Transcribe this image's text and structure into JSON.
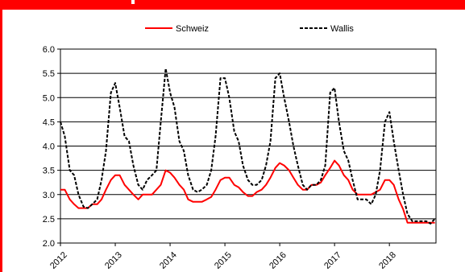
{
  "chart_data": {
    "type": "line",
    "title": "",
    "xlabel": "",
    "ylabel": "",
    "ylim": [
      2.0,
      6.0
    ],
    "yticks": [
      "2.0",
      "2.5",
      "3.0",
      "3.5",
      "4.0",
      "4.5",
      "5.0",
      "5.5",
      "6.0"
    ],
    "xticks": [
      "2012",
      "2013",
      "2014",
      "2015",
      "2016",
      "2017",
      "2018"
    ],
    "x_start": 2012.0,
    "x_end": 2018.85,
    "grid": "horizontal",
    "legend_position": "top",
    "series": [
      {
        "name": "Schweiz",
        "color": "#ff0000",
        "style": "solid",
        "x": [
          2012.0,
          2012.08,
          2012.17,
          2012.25,
          2012.33,
          2012.42,
          2012.5,
          2012.58,
          2012.67,
          2012.75,
          2012.83,
          2012.92,
          2013.0,
          2013.08,
          2013.17,
          2013.25,
          2013.33,
          2013.42,
          2013.5,
          2013.58,
          2013.67,
          2013.75,
          2013.83,
          2013.92,
          2014.0,
          2014.08,
          2014.17,
          2014.25,
          2014.33,
          2014.42,
          2014.5,
          2014.58,
          2014.67,
          2014.75,
          2014.83,
          2014.92,
          2015.0,
          2015.08,
          2015.17,
          2015.25,
          2015.33,
          2015.42,
          2015.5,
          2015.58,
          2015.67,
          2015.75,
          2015.83,
          2015.92,
          2016.0,
          2016.08,
          2016.17,
          2016.25,
          2016.33,
          2016.42,
          2016.5,
          2016.58,
          2016.67,
          2016.75,
          2016.83,
          2016.92,
          2017.0,
          2017.08,
          2017.17,
          2017.25,
          2017.33,
          2017.42,
          2017.5,
          2017.58,
          2017.67,
          2017.75,
          2017.83,
          2017.92,
          2018.0,
          2018.08,
          2018.17,
          2018.25,
          2018.33,
          2018.42,
          2018.5,
          2018.58,
          2018.67,
          2018.75,
          2018.83
        ],
        "values": [
          3.1,
          3.1,
          2.9,
          2.8,
          2.72,
          2.72,
          2.72,
          2.8,
          2.8,
          2.9,
          3.1,
          3.3,
          3.4,
          3.4,
          3.2,
          3.1,
          3.0,
          2.9,
          3.0,
          3.0,
          3.0,
          3.1,
          3.2,
          3.5,
          3.45,
          3.35,
          3.2,
          3.1,
          2.9,
          2.85,
          2.85,
          2.85,
          2.9,
          2.95,
          3.1,
          3.3,
          3.35,
          3.35,
          3.2,
          3.15,
          3.05,
          2.97,
          2.97,
          3.05,
          3.1,
          3.2,
          3.35,
          3.55,
          3.65,
          3.6,
          3.5,
          3.35,
          3.2,
          3.1,
          3.1,
          3.2,
          3.2,
          3.25,
          3.4,
          3.55,
          3.7,
          3.6,
          3.4,
          3.3,
          3.1,
          3.0,
          3.0,
          3.0,
          3.0,
          3.05,
          3.1,
          3.3,
          3.3,
          3.2,
          2.9,
          2.7,
          2.42,
          2.42,
          2.42,
          2.42,
          2.42,
          2.42,
          2.42
        ]
      },
      {
        "name": "Wallis",
        "color": "#000000",
        "style": "dashed",
        "x": [
          2012.0,
          2012.08,
          2012.17,
          2012.25,
          2012.33,
          2012.42,
          2012.5,
          2012.58,
          2012.67,
          2012.75,
          2012.83,
          2012.92,
          2013.0,
          2013.08,
          2013.17,
          2013.25,
          2013.33,
          2013.42,
          2013.5,
          2013.58,
          2013.67,
          2013.75,
          2013.83,
          2013.92,
          2014.0,
          2014.08,
          2014.17,
          2014.25,
          2014.33,
          2014.42,
          2014.5,
          2014.58,
          2014.67,
          2014.75,
          2014.83,
          2014.92,
          2015.0,
          2015.08,
          2015.17,
          2015.25,
          2015.33,
          2015.42,
          2015.5,
          2015.58,
          2015.67,
          2015.75,
          2015.83,
          2015.92,
          2016.0,
          2016.08,
          2016.17,
          2016.25,
          2016.33,
          2016.42,
          2016.5,
          2016.58,
          2016.67,
          2016.75,
          2016.83,
          2016.92,
          2017.0,
          2017.08,
          2017.17,
          2017.25,
          2017.33,
          2017.42,
          2017.5,
          2017.58,
          2017.67,
          2017.75,
          2017.83,
          2017.92,
          2018.0,
          2018.08,
          2018.17,
          2018.25,
          2018.33,
          2018.42,
          2018.5,
          2018.58,
          2018.67,
          2018.75,
          2018.83
        ],
        "values": [
          4.5,
          4.2,
          3.5,
          3.4,
          3.0,
          2.75,
          2.72,
          2.8,
          2.9,
          3.3,
          3.9,
          5.1,
          5.3,
          4.8,
          4.2,
          4.1,
          3.6,
          3.2,
          3.1,
          3.3,
          3.4,
          3.5,
          4.5,
          5.6,
          5.1,
          4.8,
          4.1,
          3.9,
          3.4,
          3.1,
          3.05,
          3.1,
          3.2,
          3.5,
          4.2,
          5.4,
          5.4,
          5.0,
          4.3,
          4.1,
          3.6,
          3.3,
          3.2,
          3.2,
          3.3,
          3.6,
          4.1,
          5.4,
          5.5,
          5.0,
          4.5,
          4.0,
          3.6,
          3.2,
          3.1,
          3.2,
          3.2,
          3.3,
          3.6,
          5.1,
          5.2,
          4.5,
          3.9,
          3.7,
          3.3,
          2.9,
          2.9,
          2.9,
          2.8,
          3.0,
          3.5,
          4.5,
          4.7,
          4.1,
          3.5,
          3.0,
          2.6,
          2.45,
          2.45,
          2.45,
          2.45,
          2.4,
          2.5
        ]
      }
    ]
  }
}
